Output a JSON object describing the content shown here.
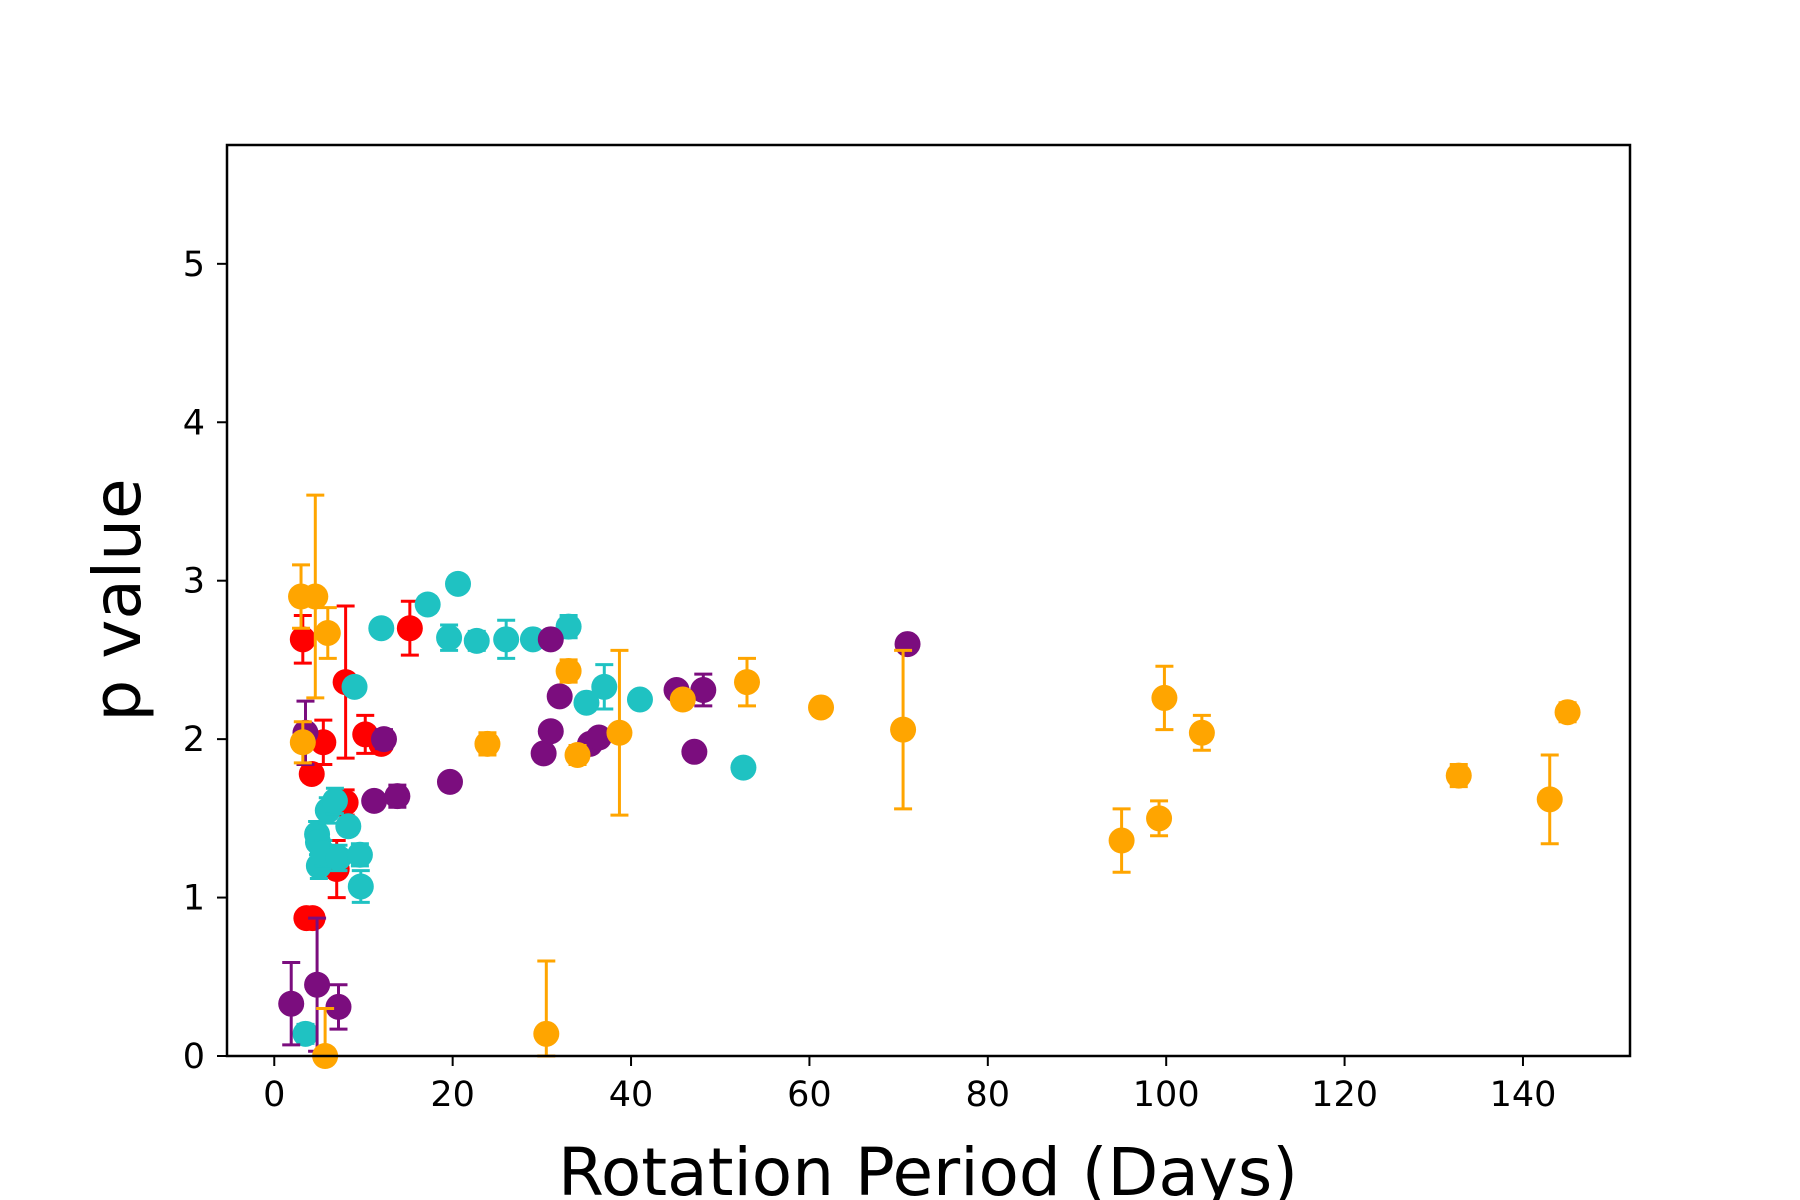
{
  "chart_data": {
    "type": "scatter",
    "title": "",
    "xlabel": "Rotation Period (Days)",
    "ylabel": "p value",
    "xlim": [
      -5.3,
      152
    ],
    "ylim": [
      0,
      5.75
    ],
    "xticks": [
      0,
      20,
      40,
      60,
      80,
      100,
      120,
      140
    ],
    "yticks": [
      0,
      1,
      2,
      3,
      4,
      5
    ],
    "grid": false,
    "legend": "none",
    "series": [
      {
        "color": "#FF0000",
        "points": [
          {
            "x": 3.2,
            "y": 2.63,
            "err": 0.15
          },
          {
            "x": 5.5,
            "y": 1.98,
            "err": 0.14
          },
          {
            "x": 4.2,
            "y": 1.78,
            "err": 0.05
          },
          {
            "x": 3.6,
            "y": 0.87,
            "err": 0.03
          },
          {
            "x": 4.3,
            "y": 0.87,
            "err": 0.03
          },
          {
            "x": 7.0,
            "y": 1.18,
            "err": 0.18
          },
          {
            "x": 8.0,
            "y": 1.6,
            "err": 0.08
          },
          {
            "x": 8.0,
            "y": 2.36,
            "err": 0.48
          },
          {
            "x": 10.2,
            "y": 2.03,
            "err": 0.12
          },
          {
            "x": 12.0,
            "y": 1.97,
            "err": 0.05
          },
          {
            "x": 15.2,
            "y": 2.7,
            "err": 0.17
          }
        ]
      },
      {
        "color": "#1FC2C2",
        "points": [
          {
            "x": 3.5,
            "y": 0.14,
            "err": 0.06
          },
          {
            "x": 4.8,
            "y": 1.4,
            "err": 0.08
          },
          {
            "x": 4.9,
            "y": 1.35,
            "err": 0.08
          },
          {
            "x": 5.0,
            "y": 1.2,
            "err": 0.08
          },
          {
            "x": 5.5,
            "y": 1.28,
            "err": 0.08
          },
          {
            "x": 6.0,
            "y": 1.55,
            "err": 0.08
          },
          {
            "x": 6.8,
            "y": 1.61,
            "err": 0.08
          },
          {
            "x": 7.2,
            "y": 1.25,
            "err": 0.08
          },
          {
            "x": 8.3,
            "y": 1.45,
            "err": 0.05
          },
          {
            "x": 9.0,
            "y": 2.33,
            "err": 0.03
          },
          {
            "x": 9.6,
            "y": 1.27,
            "err": 0.07
          },
          {
            "x": 9.7,
            "y": 1.07,
            "err": 0.1
          },
          {
            "x": 12.0,
            "y": 2.7,
            "err": 0.03
          },
          {
            "x": 17.2,
            "y": 2.85,
            "err": 0.05
          },
          {
            "x": 19.6,
            "y": 2.64,
            "err": 0.08
          },
          {
            "x": 20.6,
            "y": 2.98,
            "err": 0.03
          },
          {
            "x": 22.7,
            "y": 2.62,
            "err": 0.06
          },
          {
            "x": 26.0,
            "y": 2.63,
            "err": 0.12
          },
          {
            "x": 29.0,
            "y": 2.63,
            "err": 0.03
          },
          {
            "x": 33.0,
            "y": 2.71,
            "err": 0.07
          },
          {
            "x": 35.0,
            "y": 2.23,
            "err": 0.05
          },
          {
            "x": 37.0,
            "y": 2.33,
            "err": 0.14
          },
          {
            "x": 41.0,
            "y": 2.25,
            "err": 0.03
          },
          {
            "x": 52.6,
            "y": 1.82,
            "err": 0.03
          }
        ]
      },
      {
        "color": "#7B0D7E",
        "points": [
          {
            "x": 1.9,
            "y": 0.33,
            "err": 0.26
          },
          {
            "x": 3.5,
            "y": 2.04,
            "err": 0.2
          },
          {
            "x": 4.8,
            "y": 0.45,
            "err": 0.42
          },
          {
            "x": 7.2,
            "y": 0.31,
            "err": 0.14
          },
          {
            "x": 11.2,
            "y": 1.61,
            "err": 0.03
          },
          {
            "x": 12.3,
            "y": 2.0,
            "err": 0.06
          },
          {
            "x": 13.8,
            "y": 1.64,
            "err": 0.07
          },
          {
            "x": 19.7,
            "y": 1.73,
            "err": 0.04
          },
          {
            "x": 30.2,
            "y": 1.91,
            "err": 0.03
          },
          {
            "x": 31.0,
            "y": 2.63,
            "err": 0.03
          },
          {
            "x": 31.0,
            "y": 2.05,
            "err": 0.03
          },
          {
            "x": 32.0,
            "y": 2.27,
            "err": 0.05
          },
          {
            "x": 35.4,
            "y": 1.97,
            "err": 0.03
          },
          {
            "x": 36.4,
            "y": 2.01,
            "err": 0.03
          },
          {
            "x": 45.1,
            "y": 2.31,
            "err": 0.03
          },
          {
            "x": 47.1,
            "y": 1.92,
            "err": 0.03
          },
          {
            "x": 48.1,
            "y": 2.31,
            "err": 0.1
          },
          {
            "x": 71.0,
            "y": 2.6,
            "err": 0.03
          }
        ]
      },
      {
        "color": "#FFA500",
        "points": [
          {
            "x": 3.0,
            "y": 2.9,
            "err": 0.2
          },
          {
            "x": 3.2,
            "y": 1.98,
            "err": 0.13
          },
          {
            "x": 4.6,
            "y": 2.9,
            "err": 0.64
          },
          {
            "x": 6.0,
            "y": 2.67,
            "err": 0.16
          },
          {
            "x": 5.7,
            "y": 0.0,
            "err": 0.3
          },
          {
            "x": 23.9,
            "y": 1.97,
            "err": 0.07
          },
          {
            "x": 30.5,
            "y": 0.14,
            "err": 0.46
          },
          {
            "x": 33.0,
            "y": 2.43,
            "err": 0.07
          },
          {
            "x": 34.0,
            "y": 1.9,
            "err": 0.06
          },
          {
            "x": 38.7,
            "y": 2.04,
            "err": 0.52
          },
          {
            "x": 45.8,
            "y": 2.25,
            "err": 0.04
          },
          {
            "x": 53.0,
            "y": 2.36,
            "err": 0.15
          },
          {
            "x": 61.3,
            "y": 2.2,
            "err": 0.05
          },
          {
            "x": 70.5,
            "y": 2.06,
            "err": 0.5
          },
          {
            "x": 95.0,
            "y": 1.36,
            "err": 0.2
          },
          {
            "x": 99.2,
            "y": 1.5,
            "err": 0.11
          },
          {
            "x": 99.8,
            "y": 2.26,
            "err": 0.2
          },
          {
            "x": 104.0,
            "y": 2.04,
            "err": 0.11
          },
          {
            "x": 132.8,
            "y": 1.77,
            "err": 0.07
          },
          {
            "x": 143.0,
            "y": 1.62,
            "err": 0.28
          },
          {
            "x": 145.0,
            "y": 2.17,
            "err": 0.06
          }
        ]
      }
    ]
  }
}
